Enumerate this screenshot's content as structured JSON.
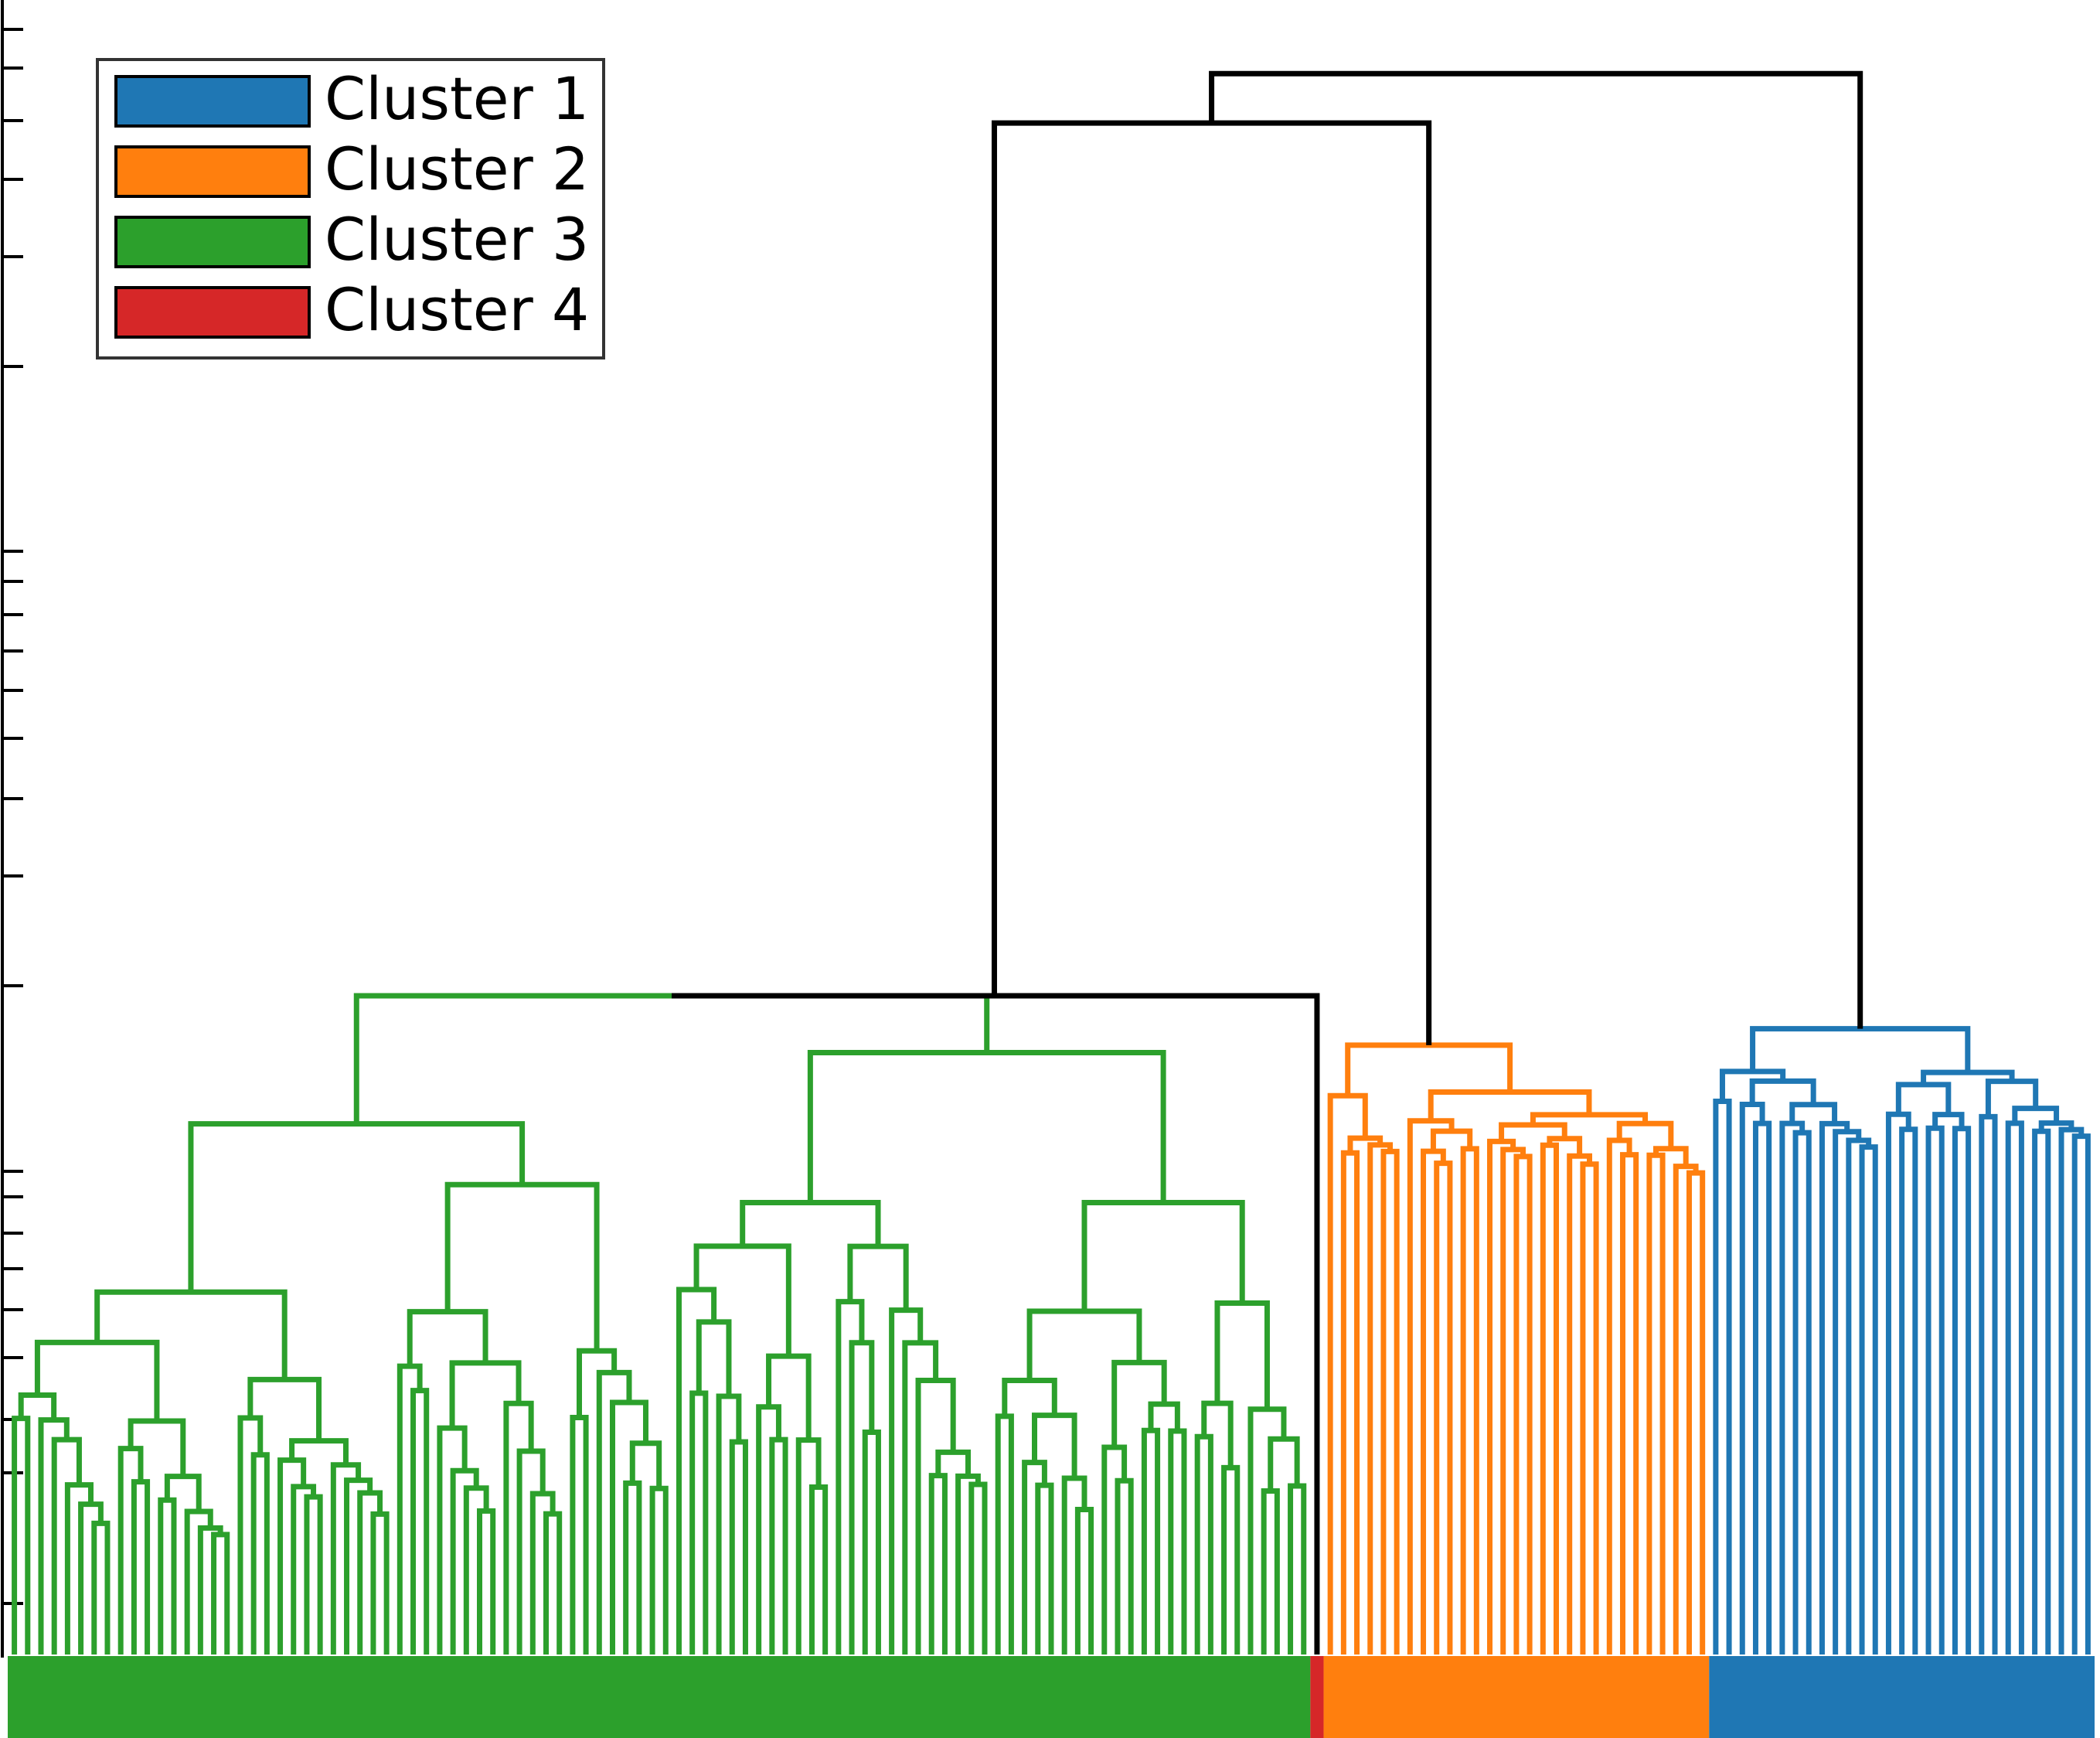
{
  "chart_data": {
    "type": "dendrogram",
    "title": "",
    "xlabel": "",
    "ylabel": "",
    "yscale": "log",
    "y_ticks_labeled": false,
    "grid": false,
    "legend_position": "top-left",
    "legend": [
      {
        "label": "Cluster 1",
        "color": "#1f77b4"
      },
      {
        "label": "Cluster 2",
        "color": "#ff7f0e"
      },
      {
        "label": "Cluster 3",
        "color": "#2ca02c"
      },
      {
        "label": "Cluster 4",
        "color": "#d62728"
      }
    ],
    "merge_color": "#000000",
    "cluster_bar_order": [
      "Cluster 3",
      "Cluster 4",
      "Cluster 2",
      "Cluster 1"
    ],
    "clusters": [
      {
        "name": "Cluster 3",
        "color": "#2ca02c",
        "leaf_count": 98,
        "top_merge_height": 0.4
      },
      {
        "name": "Cluster 4",
        "color": "#d62728",
        "leaf_count": 1,
        "top_merge_height": 0.4
      },
      {
        "name": "Cluster 2",
        "color": "#ff7f0e",
        "leaf_count": 29,
        "top_merge_height": 0.37
      },
      {
        "name": "Cluster 1",
        "color": "#1f77b4",
        "leaf_count": 29,
        "top_merge_height": 0.38
      }
    ],
    "top_level_merges": [
      {
        "children": [
          "Cluster 3",
          "Cluster 4"
        ],
        "height": 0.4
      },
      {
        "children": [
          "Cluster 3+4",
          "Cluster 2"
        ],
        "height": 0.93
      },
      {
        "children": [
          "Cluster 3+4+2",
          "Cluster 1"
        ],
        "height": 0.96
      }
    ]
  }
}
